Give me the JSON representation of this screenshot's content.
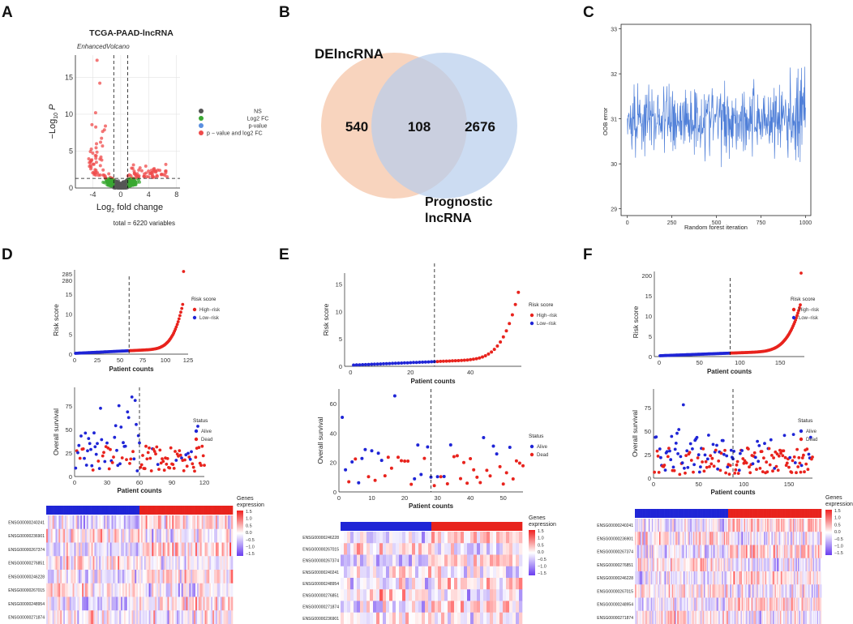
{
  "panels": {
    "A": {
      "label": "A"
    },
    "B": {
      "label": "B"
    },
    "C": {
      "label": "C"
    },
    "D": {
      "label": "D"
    },
    "E": {
      "label": "E"
    },
    "F": {
      "label": "F"
    }
  },
  "colors": {
    "high": "#e8231d",
    "low": "#1f25d6",
    "ns": "#555555",
    "log2fc": "#3aa832",
    "pvalue": "#5a8fe0",
    "both": "#ef4b4b",
    "venn_left": "#f5c5a8",
    "venn_right": "#b7cdec",
    "oob": "#4f7fd8",
    "heat_low": "#6a3df0",
    "heat_mid": "#ffffff",
    "heat_high": "#f02020"
  },
  "chart_data": [
    {
      "id": "A",
      "type": "scatter",
      "title": "TCGA-PAAD-lncRNA",
      "subtitle": "EnhancedVolcano",
      "xlabel_main": "Log",
      "xlabel_sub": "2",
      "xlabel_rest": " fold change",
      "ylabel": "−Log",
      "ylabel_sub": "10",
      "ylabel_p": "P",
      "xlim": [
        -6.5,
        8.5
      ],
      "ylim": [
        0,
        18
      ],
      "xticks": [
        -4,
        0,
        4,
        8
      ],
      "yticks": [
        0,
        5,
        10,
        15
      ],
      "fc_cutoff": 1,
      "p_cutoff": 1.3,
      "legend": [
        "NS",
        "Log2 FC",
        "p-value",
        "p − value and log2 FC"
      ],
      "caption": "total = 6220 variables"
    },
    {
      "id": "B",
      "type": "venn",
      "sets": [
        "DElncRNA",
        "Prognostic lncRNA"
      ],
      "set_b_line1": "Prognostic",
      "set_b_line2": "lncRNA",
      "only_a": 540,
      "both": 108,
      "only_b": 2676
    },
    {
      "id": "C",
      "type": "line",
      "xlabel": "Random forest iteration",
      "ylabel": "OOB error",
      "xlim": [
        0,
        1000
      ],
      "ylim": [
        29,
        33
      ],
      "xticks": [
        0,
        250,
        500,
        750,
        1000
      ],
      "yticks": [
        29,
        30,
        31,
        32,
        33
      ],
      "mean": 31.0,
      "spread": 0.55
    },
    {
      "id": "D",
      "type": "risk",
      "risk": {
        "xlabel": "Patient counts",
        "ylabel": "Risk score",
        "xlim": [
          0,
          125
        ],
        "xticks": [
          0,
          25,
          50,
          75,
          100,
          125
        ],
        "yticks": [
          0,
          5,
          10,
          15
        ],
        "break_ticks": [
          "285",
          "280"
        ],
        "n": 120,
        "cut": 60,
        "legend_title": "Risk score",
        "legend": [
          "High−risk",
          "Low−risk"
        ]
      },
      "survival": {
        "xlabel": "Patient counts",
        "ylabel": "Overall survival",
        "xlim": [
          0,
          120
        ],
        "xticks": [
          0,
          30,
          60,
          90,
          120
        ],
        "ylim": [
          0,
          95
        ],
        "yticks": [
          0,
          25,
          50,
          75
        ],
        "legend_title": "Status",
        "legend": [
          "Alive",
          "Dead"
        ]
      },
      "heatmap": {
        "genes": [
          "ENSG00000240241",
          "ENSG00000236901",
          "ENSG00000267374",
          "ENSG00000276851",
          "ENSG00000246228",
          "ENSG00000267015",
          "ENSG00000248954",
          "ENSG00000271874"
        ],
        "legend_title_1": "Genes",
        "legend_title_2": "expression",
        "scale": [
          "1.5",
          "1.0",
          "0.5",
          "0.0",
          "−0.5",
          "−1.0",
          "−1.5"
        ]
      }
    },
    {
      "id": "E",
      "type": "risk",
      "risk": {
        "xlabel": "Patient counts",
        "ylabel": "Risk score",
        "xlim": [
          -2,
          57
        ],
        "xticks": [
          0,
          20,
          40
        ],
        "ylim": [
          0,
          17
        ],
        "yticks": [
          0,
          5,
          10,
          15
        ],
        "n": 56,
        "cut": 28,
        "legend_title": "Risk score",
        "legend": [
          "High−risk",
          "Low−risk"
        ]
      },
      "survival": {
        "xlabel": "Patient counts",
        "ylabel": "Overall survival",
        "xlim": [
          0,
          56
        ],
        "xticks": [
          0,
          10,
          20,
          30,
          40,
          50
        ],
        "ylim": [
          0,
          70
        ],
        "yticks": [
          0,
          20,
          40,
          60
        ],
        "legend_title": "Status",
        "legend": [
          "Alive",
          "Dead"
        ]
      },
      "heatmap": {
        "genes": [
          "ENSG00000246228",
          "ENSG00000267015",
          "ENSG00000267374",
          "ENSG00000240241",
          "ENSG00000248954",
          "ENSG00000276851",
          "ENSG00000271874",
          "ENSG00000236901"
        ],
        "legend_title_1": "Genes",
        "legend_title_2": "expression",
        "scale": [
          "1.5",
          "1.0",
          "0.5",
          "0.0",
          "−0.5",
          "−1.0",
          "−1.5"
        ]
      }
    },
    {
      "id": "F",
      "type": "risk",
      "risk": {
        "xlabel": "Patient counts",
        "ylabel": "Risk score",
        "xlim": [
          -6,
          180
        ],
        "xticks": [
          0,
          50,
          100,
          150
        ],
        "yticks": [
          0,
          5,
          10,
          15
        ],
        "break_ticks": [
          "200"
        ],
        "n": 176,
        "cut": 88,
        "legend_title": "Risk score",
        "legend": [
          "High−risk",
          "Low−risk"
        ]
      },
      "survival": {
        "xlabel": "Patient counts",
        "ylabel": "Overall survival",
        "xlim": [
          0,
          176
        ],
        "xticks": [
          0,
          50,
          100,
          150
        ],
        "ylim": [
          0,
          95
        ],
        "yticks": [
          0,
          25,
          50,
          75
        ],
        "legend_title": "Status",
        "legend": [
          "Alive",
          "Dead"
        ]
      },
      "heatmap": {
        "genes": [
          "ENSG00000240241",
          "ENSG00000236901",
          "ENSG00000267374",
          "ENSG00000276851",
          "ENSG00000246228",
          "ENSG00000267015",
          "ENSG00000248954",
          "ENSG00000271874"
        ],
        "legend_title_1": "Genes",
        "legend_title_2": "expression",
        "scale": [
          "1.5",
          "1.0",
          "0.5",
          "0.0",
          "−0.5",
          "−1.0",
          "−1.5"
        ]
      }
    }
  ]
}
